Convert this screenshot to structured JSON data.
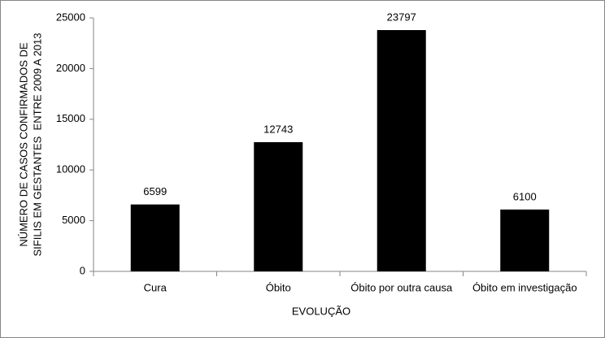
{
  "chart_data": {
    "type": "bar",
    "ylabel": [
      "NÚMERO DE CASOS CONFIRMADOS DE",
      "SIFILIS EM GESTANTES  ENTRE 2009 A 2013"
    ],
    "xlabel": "EVOLUÇÃO",
    "categories": [
      "Cura",
      "Óbito",
      "Óbito por outra causa",
      "Óbito em investigação"
    ],
    "values": [
      6599,
      12743,
      23797,
      6100
    ],
    "color": "#000000",
    "ylim": [
      0,
      25000
    ],
    "yticks": [
      0,
      5000,
      10000,
      15000,
      20000,
      25000
    ]
  }
}
